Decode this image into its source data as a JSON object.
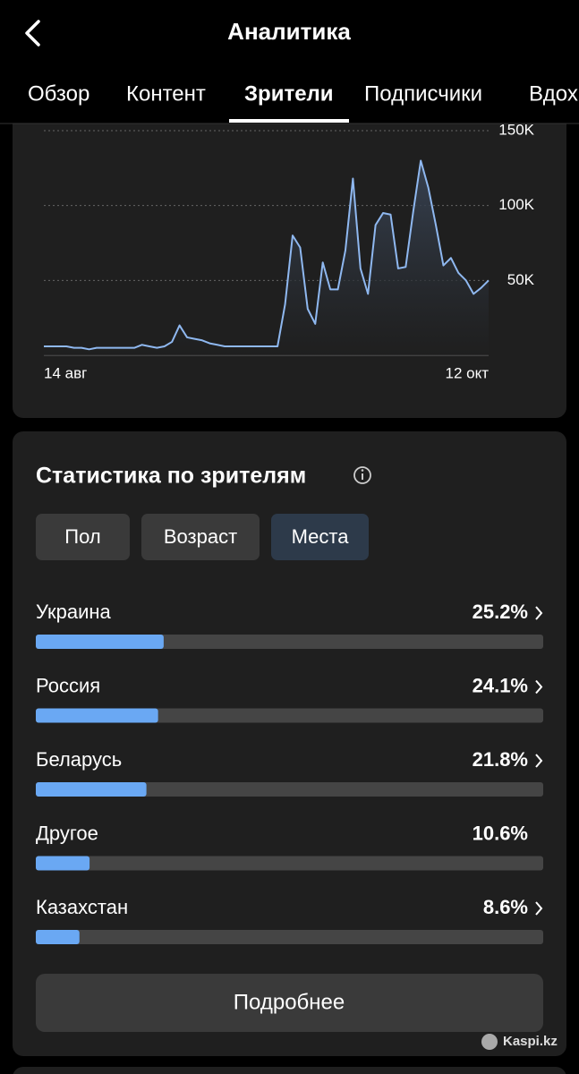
{
  "header": {
    "title": "Аналитика",
    "tabs": [
      "Обзор",
      "Контент",
      "Зрители",
      "Подписчики",
      "Вдох"
    ],
    "active_tab": 2
  },
  "chart_data": {
    "type": "line",
    "color": "#8fb8f0",
    "categories": [
      "14 авг",
      null,
      null,
      null,
      null,
      null,
      null,
      null,
      null,
      null,
      null,
      null,
      null,
      null,
      null,
      null,
      null,
      null,
      null,
      null,
      null,
      null,
      null,
      null,
      null,
      null,
      null,
      null,
      null,
      null,
      null,
      null,
      null,
      null,
      null,
      null,
      null,
      null,
      null,
      null,
      null,
      null,
      null,
      null,
      null,
      null,
      null,
      null,
      null,
      null,
      null,
      null,
      null,
      null,
      null,
      null,
      null,
      null,
      null,
      "12 окт"
    ],
    "values": [
      6000,
      6000,
      6000,
      6000,
      5000,
      5000,
      4000,
      5000,
      5000,
      5000,
      5000,
      5000,
      5000,
      7000,
      6000,
      5000,
      6000,
      9000,
      20000,
      12000,
      11000,
      10000,
      8000,
      7000,
      6000,
      6000,
      6000,
      6000,
      6000,
      6000,
      6000,
      6000,
      34000,
      80000,
      72000,
      31000,
      21000,
      62000,
      44000,
      44000,
      70000,
      118000,
      58000,
      41000,
      87000,
      95000,
      94000,
      58000,
      59000,
      96000,
      130000,
      112000,
      87000,
      60000,
      65000,
      55000,
      50000,
      41000,
      45000,
      50000
    ],
    "ylim": [
      0,
      150000
    ],
    "yticks": [
      {
        "value": 50000,
        "label": "50K"
      },
      {
        "value": 100000,
        "label": "100K"
      },
      {
        "value": 150000,
        "label": "150K"
      }
    ],
    "grid": true
  },
  "stats": {
    "title": "Статистика по зрителям",
    "tabs": [
      "Пол",
      "Возраст",
      "Места"
    ],
    "active_tab": 2,
    "rows": [
      {
        "name": "Украина",
        "value": 25.2,
        "value_label": "25.2%",
        "link": true
      },
      {
        "name": "Россия",
        "value": 24.1,
        "value_label": "24.1%",
        "link": true
      },
      {
        "name": "Беларусь",
        "value": 21.8,
        "value_label": "21.8%",
        "link": true
      },
      {
        "name": "Другое",
        "value": 10.6,
        "value_label": "10.6%",
        "link": false
      },
      {
        "name": "Казахстан",
        "value": 8.6,
        "value_label": "8.6%",
        "link": true
      }
    ],
    "bar_max": 100,
    "button": "Подробнее"
  },
  "watermark": "Kaspi.kz"
}
